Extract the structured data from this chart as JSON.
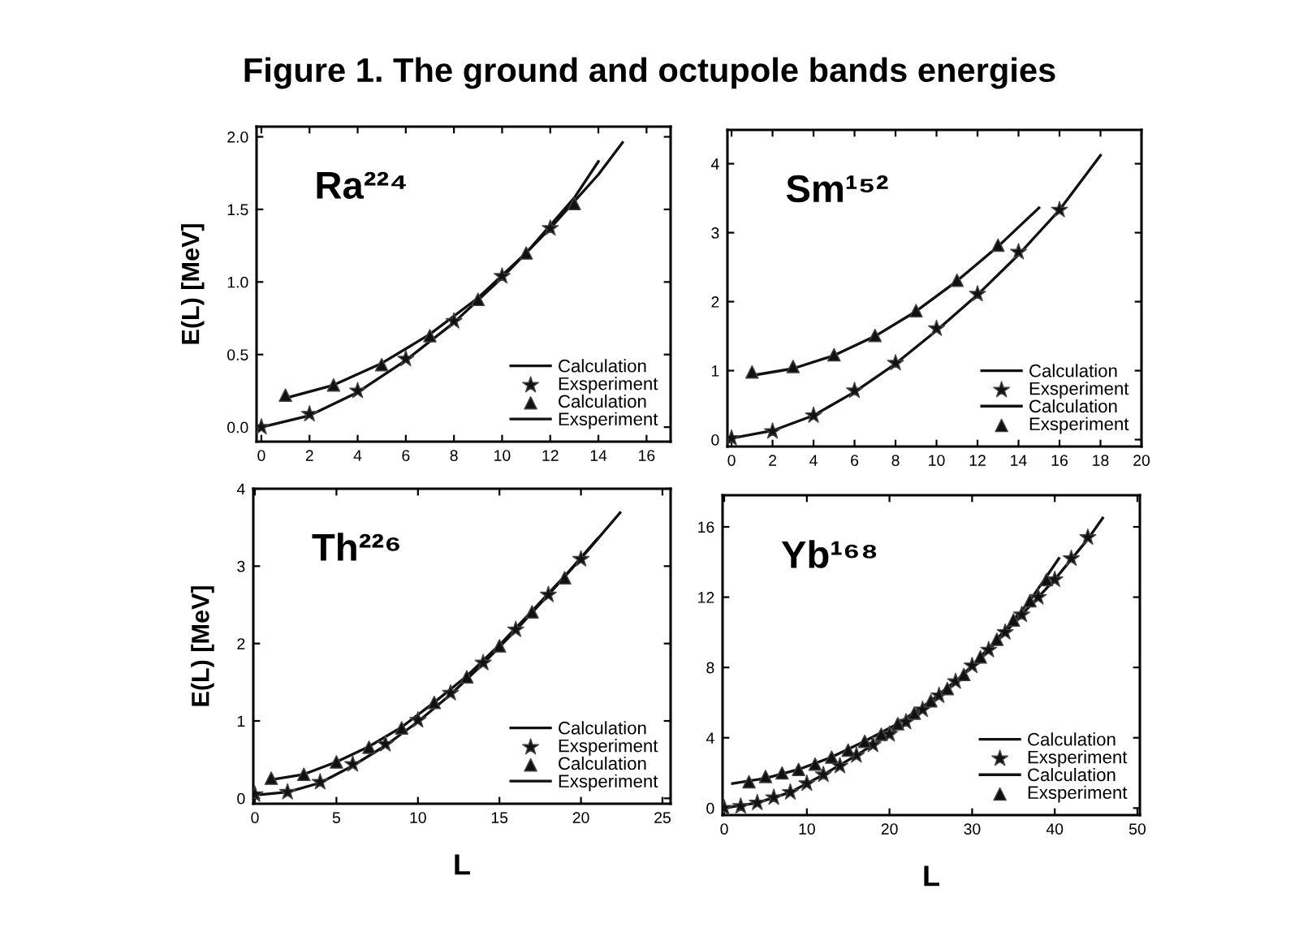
{
  "chart_data": [
    {
      "type": "line",
      "title": "Figure 1. The ground and octupole bands energies",
      "ylabel": "E(L) [MeV]",
      "annotations": [
        "Ra²²⁴"
      ],
      "xlim": [
        -0.2,
        17
      ],
      "ylim": [
        -0.1,
        2.07
      ],
      "xticks": [
        0,
        2,
        4,
        6,
        8,
        10,
        12,
        14,
        16
      ],
      "yticks": [
        {
          "value": 0,
          "label": "0.0"
        },
        {
          "value": 0.5,
          "label": "0.5"
        },
        {
          "value": 1,
          "label": "1.0"
        },
        {
          "value": 1.5,
          "label": "1.5"
        },
        {
          "value": 2,
          "label": "2.0"
        }
      ],
      "grid": false,
      "legend": "bottom right",
      "series": [
        {
          "name": "Calculation",
          "type": "line",
          "marker": "none",
          "color": "#111111",
          "x": [
            0,
            2,
            4,
            6,
            8,
            10,
            12,
            14,
            15
          ],
          "values": [
            0,
            0.08,
            0.24,
            0.46,
            0.72,
            1.03,
            1.37,
            1.74,
            1.96
          ]
        },
        {
          "name": "Exsperiment",
          "type": "scatter",
          "marker": "star",
          "color": "#111111",
          "x": [
            0,
            2,
            4,
            6,
            8,
            10,
            12
          ],
          "values": [
            0,
            0.09,
            0.25,
            0.47,
            0.73,
            1.04,
            1.37
          ]
        },
        {
          "name": "Calculation",
          "type": "scatter",
          "marker": "triangle",
          "color": "#111111",
          "x": [
            1,
            3,
            5,
            7,
            9,
            11,
            13
          ],
          "values": [
            0.22,
            0.29,
            0.43,
            0.63,
            0.88,
            1.2,
            1.54
          ]
        },
        {
          "name": "Exsperiment",
          "type": "line",
          "marker": "none",
          "color": "#111111",
          "x": [
            1,
            3,
            5,
            7,
            9,
            11,
            13,
            14
          ],
          "values": [
            0.2,
            0.29,
            0.44,
            0.64,
            0.89,
            1.2,
            1.58,
            1.83
          ]
        }
      ]
    },
    {
      "type": "line",
      "annotations": [
        "Sm¹⁵²"
      ],
      "xlim": [
        -0.2,
        20
      ],
      "ylim": [
        -0.1,
        4.49
      ],
      "xticks": [
        0,
        2,
        4,
        6,
        8,
        10,
        12,
        14,
        16,
        18,
        20
      ],
      "yticks": [
        0,
        1,
        2,
        3,
        4
      ],
      "grid": false,
      "legend": "bottom right",
      "series": [
        {
          "name": "Calculation",
          "type": "line",
          "marker": "none",
          "color": "#111111",
          "x": [
            0,
            2,
            4,
            6,
            8,
            10,
            12,
            14,
            16,
            18
          ],
          "values": [
            0.02,
            0.13,
            0.35,
            0.69,
            1.1,
            1.58,
            2.1,
            2.68,
            3.33,
            4.12
          ]
        },
        {
          "name": "Exsperiment",
          "type": "scatter",
          "marker": "star",
          "color": "#111111",
          "x": [
            0,
            2,
            4,
            6,
            8,
            10,
            12,
            14,
            16
          ],
          "values": [
            0.02,
            0.12,
            0.35,
            0.71,
            1.11,
            1.61,
            2.11,
            2.72,
            3.33
          ]
        },
        {
          "name": "Calculation",
          "type": "line",
          "marker": "none",
          "color": "#111111",
          "x": [
            1,
            3,
            5,
            7,
            9,
            11,
            13,
            15
          ],
          "values": [
            0.93,
            1.03,
            1.22,
            1.5,
            1.86,
            2.3,
            2.8,
            3.36
          ]
        },
        {
          "name": "Exsperiment",
          "type": "scatter",
          "marker": "triangle",
          "color": "#111111",
          "x": [
            1,
            3,
            5,
            7,
            9,
            11,
            13
          ],
          "values": [
            0.98,
            1.06,
            1.23,
            1.51,
            1.87,
            2.31,
            2.82
          ]
        }
      ]
    },
    {
      "type": "line",
      "xlabel": "L",
      "ylabel": "E(L) [MeV]",
      "annotations": [
        "Th²²⁶"
      ],
      "xlim": [
        -0.1,
        25.5
      ],
      "ylim": [
        -0.07,
        4
      ],
      "xticks": [
        0,
        5,
        10,
        15,
        20,
        25
      ],
      "yticks": [
        0,
        1,
        2,
        3,
        4
      ],
      "grid": false,
      "legend": "bottom right",
      "series": [
        {
          "name": "Calculation",
          "type": "line",
          "marker": "none",
          "color": "#111111",
          "x": [
            0,
            2,
            4,
            6,
            8,
            10,
            12,
            14,
            16,
            18,
            20,
            22.4
          ],
          "values": [
            0.04,
            0.08,
            0.2,
            0.42,
            0.68,
            0.99,
            1.34,
            1.74,
            2.17,
            2.63,
            3.1,
            3.69
          ]
        },
        {
          "name": "Exsperiment",
          "type": "scatter",
          "marker": "star",
          "color": "#111111",
          "x": [
            0,
            2,
            4,
            6,
            8,
            10,
            12,
            14,
            16,
            18,
            20
          ],
          "values": [
            0.05,
            0.08,
            0.21,
            0.44,
            0.7,
            1.01,
            1.36,
            1.75,
            2.18,
            2.63,
            3.09
          ]
        },
        {
          "name": "Calculation",
          "type": "scatter",
          "marker": "triangle",
          "color": "#111111",
          "x": [
            1,
            3,
            5,
            7,
            9,
            11,
            13,
            15,
            17,
            19
          ],
          "values": [
            0.26,
            0.31,
            0.47,
            0.66,
            0.91,
            1.24,
            1.57,
            1.97,
            2.41,
            2.85
          ]
        },
        {
          "name": "Exsperiment",
          "type": "line",
          "marker": "none",
          "color": "#111111",
          "x": [
            1,
            3,
            5,
            7,
            9,
            11,
            13,
            15,
            17,
            19,
            21
          ],
          "values": [
            0.24,
            0.31,
            0.47,
            0.67,
            0.92,
            1.24,
            1.58,
            1.98,
            2.42,
            2.87,
            3.35
          ]
        }
      ]
    },
    {
      "type": "line",
      "xlabel": "L",
      "annotations": [
        "Yb¹⁶⁸"
      ],
      "xlim": [
        -0.2,
        50.3
      ],
      "ylim": [
        -0.4,
        17.8
      ],
      "xticks": [
        0,
        10,
        20,
        30,
        40,
        50
      ],
      "yticks": [
        0,
        4,
        8,
        12,
        16
      ],
      "grid": false,
      "legend": "bottom right",
      "series": [
        {
          "name": "Calculation",
          "type": "line",
          "marker": "none",
          "color": "#111111",
          "x": [
            0,
            4,
            8,
            12,
            16,
            20,
            24,
            28,
            32,
            36,
            40,
            44,
            45.8
          ],
          "values": [
            0,
            0.3,
            0.9,
            1.9,
            3.0,
            4.2,
            5.6,
            7.2,
            9.0,
            11.0,
            13.0,
            15.3,
            16.5
          ]
        },
        {
          "name": "Exsperiment",
          "type": "scatter",
          "marker": "star",
          "color": "#111111",
          "x": [
            0,
            2,
            4,
            6,
            8,
            10,
            12,
            14,
            16,
            18,
            20,
            22,
            24,
            26,
            28,
            30,
            32,
            34,
            36,
            38,
            40,
            42,
            44
          ],
          "values": [
            0,
            0.1,
            0.3,
            0.6,
            0.9,
            1.4,
            1.9,
            2.4,
            3.0,
            3.6,
            4.2,
            4.9,
            5.6,
            6.4,
            7.2,
            8.1,
            9.0,
            10.0,
            11.0,
            12.0,
            13.0,
            14.2,
            15.4
          ]
        },
        {
          "name": "Calculation",
          "type": "line",
          "marker": "none",
          "color": "#111111",
          "x": [
            1,
            5,
            9,
            13,
            17,
            21,
            25,
            29,
            33,
            37,
            40.5
          ],
          "values": [
            1.4,
            1.7,
            2.2,
            2.9,
            3.8,
            4.8,
            6.1,
            7.6,
            9.6,
            11.8,
            14.2
          ]
        },
        {
          "name": "Exsperiment",
          "type": "scatter",
          "marker": "triangle",
          "color": "#111111",
          "x": [
            3,
            5,
            7,
            9,
            11,
            13,
            15,
            17,
            19,
            21,
            23,
            25,
            27,
            29,
            31,
            33,
            35,
            37,
            39
          ],
          "values": [
            1.5,
            1.8,
            2.0,
            2.2,
            2.5,
            2.9,
            3.3,
            3.8,
            4.2,
            4.8,
            5.4,
            6.1,
            6.8,
            7.6,
            8.6,
            9.6,
            10.7,
            11.8,
            13.0
          ]
        }
      ]
    }
  ]
}
